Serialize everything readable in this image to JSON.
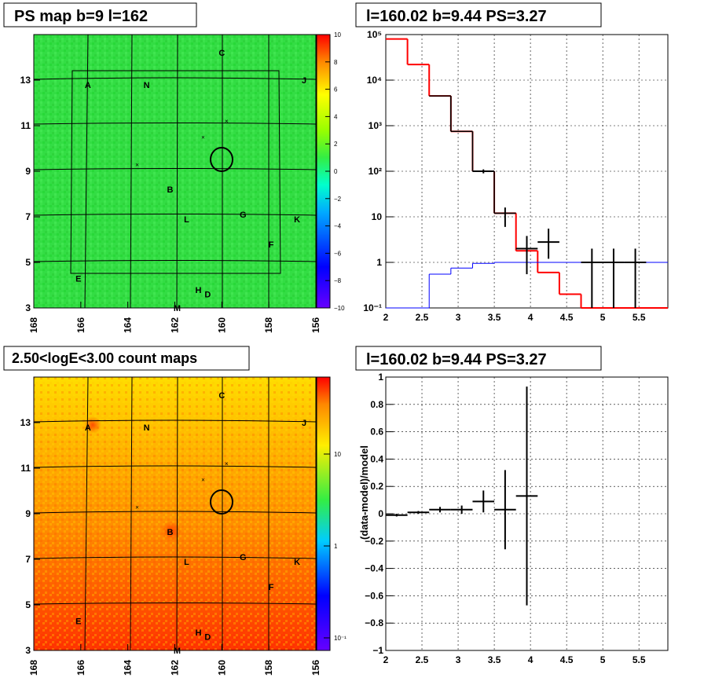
{
  "panels": {
    "ps_map_title": "PS map b=9 l=162",
    "spectrum_title": "l=160.02 b=9.44 PS=3.27",
    "count_map_title": "2.50<logE<3.00 count maps",
    "residual_title": "l=160.02 b=9.44 PS=3.27",
    "residual_ylabel": "(data-model)/model"
  },
  "map_axes": {
    "x_ticks": [
      "168",
      "166",
      "164",
      "162",
      "160",
      "158",
      "156"
    ],
    "y_ticks": [
      "3",
      "5",
      "7",
      "9",
      "11",
      "13"
    ]
  },
  "ps_colorbar_ticks": [
    "10",
    "8",
    "6",
    "4",
    "2",
    "0",
    "−2",
    "−4",
    "−6",
    "−8",
    "−10"
  ],
  "count_colorbar_ticks": [
    "10",
    "1",
    "10⁻¹"
  ],
  "sources": [
    {
      "label": "C",
      "l": 160.0,
      "b": 14.2
    },
    {
      "label": "A",
      "l": 165.7,
      "b": 12.8
    },
    {
      "label": "N",
      "l": 163.2,
      "b": 12.8
    },
    {
      "label": "J",
      "l": 156.5,
      "b": 13.0
    },
    {
      "label": "B",
      "l": 162.2,
      "b": 8.2
    },
    {
      "label": "L",
      "l": 161.5,
      "b": 6.9
    },
    {
      "label": "G",
      "l": 159.1,
      "b": 7.1
    },
    {
      "label": "K",
      "l": 156.8,
      "b": 6.9
    },
    {
      "label": "F",
      "l": 157.9,
      "b": 5.8
    },
    {
      "label": "E",
      "l": 166.1,
      "b": 4.3
    },
    {
      "label": "H",
      "l": 161.0,
      "b": 3.8
    },
    {
      "label": "D",
      "l": 160.6,
      "b": 3.6
    },
    {
      "label": "M",
      "l": 161.9,
      "b": 3.0
    }
  ],
  "markers": [
    {
      "l": 159.8,
      "b": 11.2
    },
    {
      "l": 160.8,
      "b": 10.5
    },
    {
      "l": 163.6,
      "b": 9.3
    }
  ],
  "target": {
    "l": 160.02,
    "b": 9.44
  },
  "chart_data": [
    {
      "type": "line",
      "title": "l=160.02 b=9.44 PS=3.27",
      "xlabel": "",
      "ylabel": "",
      "xlim": [
        2,
        5.9
      ],
      "ylim": [
        0.1,
        100000
      ],
      "yscale": "log",
      "grid": true,
      "x_ticks": [
        "2",
        "2.5",
        "3",
        "3.5",
        "4",
        "4.5",
        "5",
        "5.5"
      ],
      "y_ticks": [
        "10⁻¹",
        "1",
        "10",
        "10²",
        "10³",
        "10⁴",
        "10⁵"
      ],
      "bin_edges": [
        2,
        2.3,
        2.6,
        2.9,
        3.2,
        3.5,
        3.8,
        4.1,
        4.4,
        4.7,
        5.0,
        5.3,
        5.6,
        5.9
      ],
      "series": [
        {
          "color": "#ff0000",
          "style": "step",
          "values": [
            80000,
            22000,
            4500,
            750,
            100,
            12,
            1.8,
            0.6,
            0.2,
            0.1,
            0.1,
            0.1,
            0.1
          ]
        },
        {
          "color": "#0000ff",
          "style": "step",
          "values": [
            0.1,
            0.1,
            0.55,
            0.75,
            0.95,
            1.0,
            1.0,
            1.0,
            1.0,
            1.0,
            1.0,
            1.0,
            1.0
          ]
        },
        {
          "color": "#000000",
          "style": "step",
          "values": [
            null,
            null,
            4500,
            750,
            100,
            12,
            null,
            null,
            null,
            null,
            null,
            null,
            null
          ]
        },
        {
          "color": "#000000",
          "style": "errorbar",
          "points": [
            {
              "x": 3.35,
              "y": 100,
              "xerr": 0.15,
              "ylo": 90,
              "yhi": 110
            },
            {
              "x": 3.65,
              "y": 10,
              "xerr": 0.0,
              "ylo": 6,
              "yhi": 16
            },
            {
              "x": 3.95,
              "y": 2,
              "xerr": 0.15,
              "ylo": 0.55,
              "yhi": 3.8
            },
            {
              "x": 4.25,
              "y": 2.8,
              "xerr": 0.15,
              "ylo": 1.2,
              "yhi": 5.5
            },
            {
              "x": 4.85,
              "y": 1.0,
              "xerr": 0.15,
              "ylo": 0.1,
              "yhi": 2.0
            },
            {
              "x": 5.15,
              "y": 1.0,
              "xerr": 0.15,
              "ylo": 0.1,
              "yhi": 2.0
            },
            {
              "x": 5.45,
              "y": 1.0,
              "xerr": 0.15,
              "ylo": 0.1,
              "yhi": 2.0
            }
          ]
        }
      ]
    },
    {
      "type": "scatter",
      "title": "l=160.02 b=9.44 PS=3.27",
      "xlabel": "",
      "ylabel": "(data-model)/model",
      "xlim": [
        2,
        5.9
      ],
      "ylim": [
        -1,
        1
      ],
      "grid": true,
      "x_ticks": [
        "2",
        "2.5",
        "3",
        "3.5",
        "4",
        "4.5",
        "5",
        "5.5"
      ],
      "y_ticks": [
        "−1",
        "−0.8",
        "−0.6",
        "−0.4",
        "−0.2",
        "0",
        "0.2",
        "0.4",
        "0.6",
        "0.8",
        "1"
      ],
      "points": [
        {
          "x": 2.15,
          "y": -0.01,
          "xerr": 0.15,
          "yerr": 0.01
        },
        {
          "x": 2.45,
          "y": 0.01,
          "xerr": 0.15,
          "yerr": 0.01
        },
        {
          "x": 2.75,
          "y": 0.03,
          "xerr": 0.15,
          "yerr": 0.02
        },
        {
          "x": 3.05,
          "y": 0.03,
          "xerr": 0.15,
          "yerr": 0.03
        },
        {
          "x": 3.35,
          "y": 0.09,
          "xerr": 0.15,
          "yerr": 0.08
        },
        {
          "x": 3.65,
          "y": 0.03,
          "xerr": 0.15,
          "yerr": 0.29
        },
        {
          "x": 3.95,
          "y": 0.13,
          "xerr": 0.15,
          "yerr": 0.8
        }
      ]
    }
  ],
  "colors": {
    "ps_map_base": "#30e040",
    "count_map_base": "#ff8c00",
    "data": "#000000",
    "model_total": "#ff0000",
    "model_component": "#0000ff"
  }
}
